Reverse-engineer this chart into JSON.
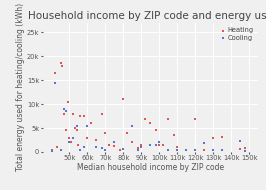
{
  "title": "Household income by ZIP code and energy use",
  "xlabel": "Median household income by ZIP code",
  "ylabel": "Total energy used for heating/cooling (kWh)",
  "heating_x": [
    40000,
    42000,
    43000,
    45000,
    46000,
    47000,
    48000,
    49000,
    50000,
    51000,
    52000,
    53000,
    54000,
    55000,
    56000,
    58000,
    60000,
    62000,
    65000,
    68000,
    70000,
    72000,
    75000,
    78000,
    80000,
    82000,
    85000,
    88000,
    90000,
    92000,
    95000,
    98000,
    100000,
    102000,
    105000,
    108000,
    110000,
    115000,
    120000,
    125000,
    130000,
    135000,
    145000,
    148000
  ],
  "heating_y": [
    500,
    16500,
    1000,
    18500,
    18000,
    8000,
    4500,
    10500,
    3000,
    2000,
    8000,
    5000,
    4500,
    1500,
    7500,
    7500,
    3000,
    6000,
    2500,
    8000,
    4000,
    1500,
    1200,
    500,
    11000,
    4000,
    2000,
    800,
    1500,
    7000,
    6000,
    4500,
    1500,
    1500,
    7000,
    3500,
    1000,
    500,
    7000,
    500,
    3000,
    3200,
    600,
    800
  ],
  "cooling_x": [
    40000,
    42000,
    45000,
    47000,
    48000,
    50000,
    52000,
    54000,
    56000,
    58000,
    60000,
    65000,
    68000,
    70000,
    75000,
    80000,
    85000,
    88000,
    90000,
    95000,
    98000,
    100000,
    105000,
    110000,
    115000,
    120000,
    125000,
    130000,
    135000,
    145000,
    148000
  ],
  "cooling_y": [
    300,
    14500,
    500,
    9000,
    8500,
    2000,
    3000,
    5500,
    500,
    1000,
    5500,
    1000,
    800,
    500,
    2000,
    600,
    5500,
    500,
    1000,
    1500,
    1500,
    2000,
    500,
    500,
    500,
    500,
    1800,
    500,
    500,
    2200,
    300
  ],
  "heating_color": "#e05555",
  "cooling_color": "#5577cc",
  "bg_color": "#f0f0f0",
  "xlim": [
    35000,
    155000
  ],
  "ylim": [
    0,
    27000
  ],
  "xticks": [
    50000,
    60000,
    70000,
    80000,
    90000,
    100000,
    110000,
    120000,
    130000,
    140000,
    150000
  ],
  "yticks": [
    0,
    5000,
    10000,
    15000,
    20000,
    25000
  ],
  "title_fontsize": 7.5,
  "label_fontsize": 5.5,
  "tick_fontsize": 4.8,
  "marker_size": 3
}
